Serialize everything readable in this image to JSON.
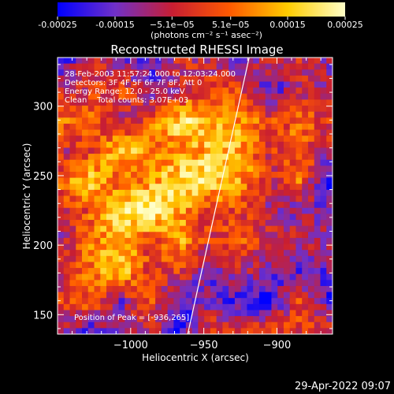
{
  "chart_data": {
    "type": "heatmap",
    "title": "Reconstructed RHESSI Image",
    "xlabel": "Heliocentric X (arcsec)",
    "ylabel": "Heliocentric Y (arcsec)",
    "xlim": [
      -1050,
      -862
    ],
    "ylim": [
      136,
      335
    ],
    "xticks": [
      -1000,
      -950,
      -900
    ],
    "xtick_labels": [
      "−1000",
      "−950",
      "−900"
    ],
    "yticks": [
      150,
      200,
      250,
      300
    ],
    "ytick_labels": [
      "150",
      "200",
      "250",
      "300"
    ],
    "colorbar": {
      "range": [
        -0.00025,
        0.00025
      ],
      "ticks": [
        -0.00025,
        -0.00015,
        -5.1e-05,
        5.1e-05,
        0.00015,
        0.00025
      ],
      "tick_labels": [
        "-0.00025",
        "-0.00015",
        "−5.1e−05",
        "5.1e−05",
        "0.00015",
        "0.00025"
      ],
      "unit_label": "(photons cm⁻² s⁻¹ asec⁻²)",
      "colors": [
        "#0000ff",
        "#7030c8",
        "#c81e32",
        "#ff5a00",
        "#ffcc00",
        "#ffffc8"
      ]
    },
    "limb_line": [
      [
        -961,
        136
      ],
      [
        -919,
        335
      ]
    ],
    "annotations": [
      "28-Feb-2003 11:57:24.000 to 12:03:24.000",
      "Detectors: 3F 4F 5F 6F 7F 8F, Att 0",
      "Energy Range: 12.0 - 25.0 keV",
      "Clean    Total counts: 3.07E+03",
      "Position of Peak = [-936,265]"
    ],
    "timestamp": "29-Apr-2022 09:07",
    "grid": false
  }
}
